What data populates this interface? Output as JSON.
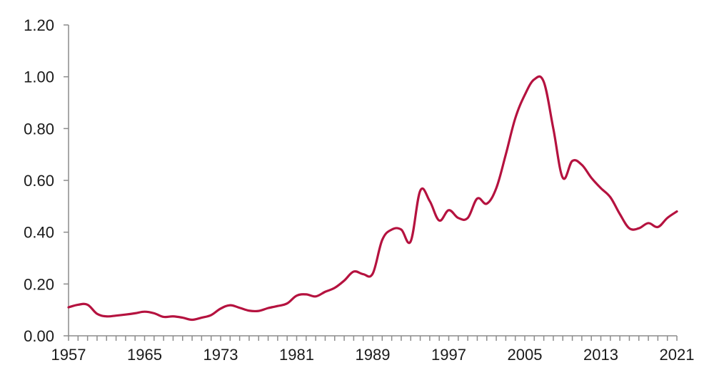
{
  "chart_data": {
    "type": "line",
    "title": "",
    "xlabel": "",
    "ylabel": "",
    "xlim": [
      1957,
      2021
    ],
    "ylim": [
      0,
      1.2
    ],
    "grid": false,
    "legend": "none",
    "x_tick_labels": [
      "1957",
      "1965",
      "1973",
      "1981",
      "1989",
      "1997",
      "2005",
      "2013",
      "2021"
    ],
    "y_tick_labels": [
      "0.00",
      "0.20",
      "0.40",
      "0.60",
      "0.80",
      "1.00",
      "1.20"
    ],
    "series": [
      {
        "color": "#b5123f",
        "x": [
          1957,
          1958,
          1959,
          1960,
          1961,
          1962,
          1963,
          1964,
          1965,
          1966,
          1967,
          1968,
          1969,
          1970,
          1971,
          1972,
          1973,
          1974,
          1975,
          1976,
          1977,
          1978,
          1979,
          1980,
          1981,
          1982,
          1983,
          1984,
          1985,
          1986,
          1987,
          1988,
          1989,
          1990,
          1991,
          1992,
          1993,
          1994,
          1995,
          1996,
          1997,
          1998,
          1999,
          2000,
          2001,
          2002,
          2003,
          2004,
          2005,
          2006,
          2007,
          2008,
          2009,
          2010,
          2011,
          2012,
          2013,
          2014,
          2015,
          2016,
          2017,
          2018,
          2019,
          2020,
          2021
        ],
        "y": [
          0.11,
          0.12,
          0.12,
          0.085,
          0.075,
          0.078,
          0.082,
          0.087,
          0.093,
          0.087,
          0.073,
          0.075,
          0.07,
          0.062,
          0.07,
          0.08,
          0.105,
          0.118,
          0.108,
          0.097,
          0.096,
          0.107,
          0.115,
          0.125,
          0.155,
          0.16,
          0.152,
          0.17,
          0.185,
          0.213,
          0.248,
          0.238,
          0.24,
          0.37,
          0.41,
          0.41,
          0.365,
          0.56,
          0.52,
          0.445,
          0.485,
          0.455,
          0.455,
          0.53,
          0.51,
          0.57,
          0.7,
          0.84,
          0.93,
          0.99,
          0.98,
          0.8,
          0.61,
          0.675,
          0.66,
          0.61,
          0.57,
          0.535,
          0.47,
          0.415,
          0.415,
          0.435,
          0.42,
          0.455,
          0.48
        ]
      }
    ]
  }
}
